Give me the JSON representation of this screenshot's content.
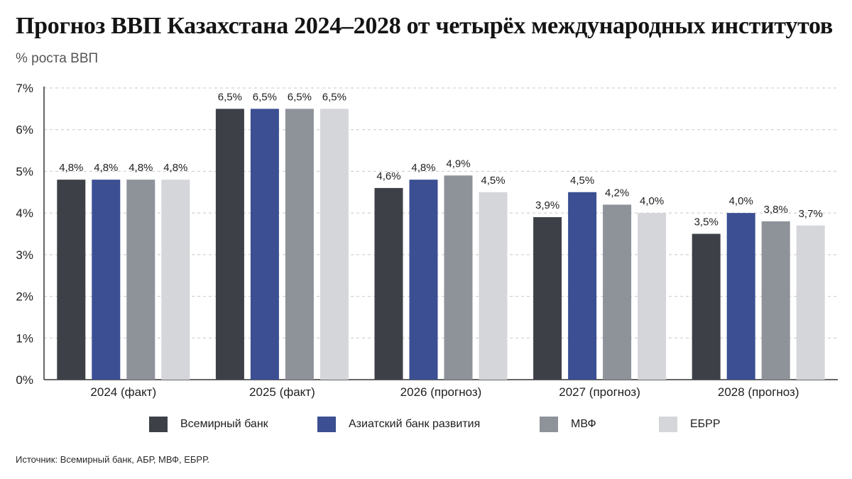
{
  "title": "Прогноз ВВП Казахстана 2024–2028 от четырёх международных институтов",
  "subtitle": "% роста ВВП",
  "source": "Источник: Всемирный банк, АБР, МВФ, ЕБРР.",
  "colors": {
    "world_bank": "#3d4147",
    "adb": "#3b4f92",
    "imf": "#8e9299",
    "ebrd": "#d4d6da",
    "grid": "#c8c8c8",
    "axis": "#333333"
  },
  "chart_data": {
    "type": "bar",
    "title": "Прогноз ВВП Казахстана 2024–2028 от четырёх международных институтов",
    "ylabel": "% роста ВВП",
    "xlabel": "",
    "ylim": [
      0,
      7
    ],
    "yticks": [
      "0%",
      "1%",
      "2%",
      "3%",
      "4%",
      "5%",
      "6%",
      "7%"
    ],
    "grid": "horizontal dashed",
    "legend_position": "bottom",
    "categories": [
      "2024 (факт)",
      "2025 (факт)",
      "2026 (прогноз)",
      "2027 (прогноз)",
      "2028 (прогноз)"
    ],
    "series": [
      {
        "name": "Всемирный банк",
        "color": "#3d4147",
        "values": [
          4.8,
          6.5,
          4.6,
          3.9,
          3.5
        ],
        "labels": [
          "4,8%",
          "6,5%",
          "4,6%",
          "3,9%",
          "3,5%"
        ]
      },
      {
        "name": "Азиатский банк развития",
        "color": "#3b4f92",
        "values": [
          4.8,
          6.5,
          4.8,
          4.5,
          4.0
        ],
        "labels": [
          "4,8%",
          "6,5%",
          "4,8%",
          "4,5%",
          "4,0%"
        ]
      },
      {
        "name": "МВФ",
        "color": "#8e9299",
        "values": [
          4.8,
          6.5,
          4.9,
          4.2,
          3.8
        ],
        "labels": [
          "4,8%",
          "6,5%",
          "4,9%",
          "4,2%",
          "3,8%"
        ]
      },
      {
        "name": "ЕБРР",
        "color": "#d4d6da",
        "values": [
          4.8,
          6.5,
          4.5,
          4.0,
          3.7
        ],
        "labels": [
          "4,8%",
          "6,5%",
          "4,5%",
          "4,0%",
          "3,7%"
        ]
      }
    ]
  }
}
